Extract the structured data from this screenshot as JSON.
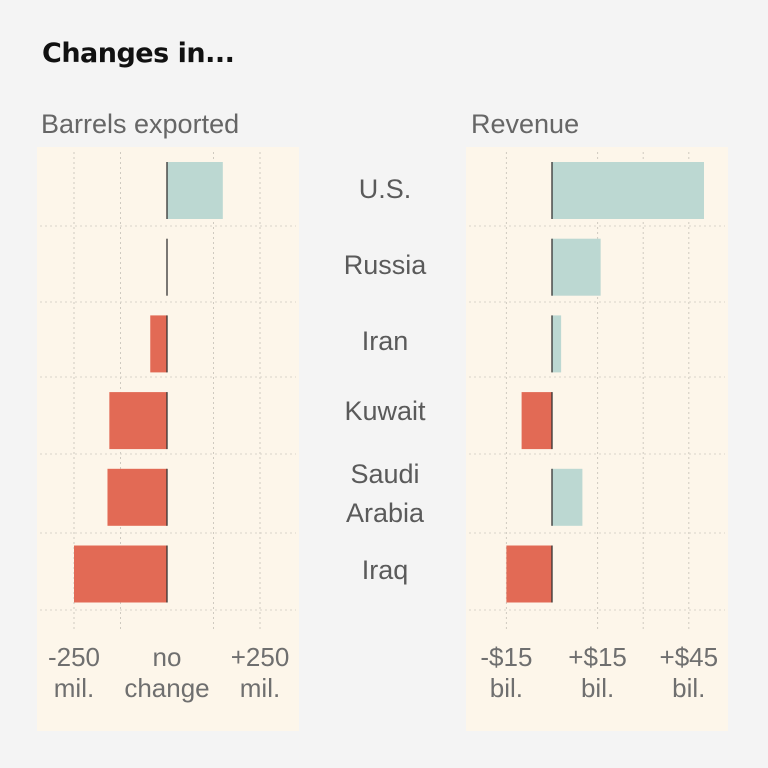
{
  "title": "Changes in...",
  "colors": {
    "positive": "#bcd8d2",
    "negative": "#e26a55",
    "panel_bg": "#fdf6ea",
    "page_bg": "#f4f4f4"
  },
  "chart_data": [
    {
      "type": "bar",
      "orientation": "horizontal",
      "title": "Barrels exported",
      "unit": "mil.",
      "categories": [
        "U.S.",
        "Russia",
        "Iran",
        "Kuwait",
        "Saudi Arabia",
        "Iraq"
      ],
      "values": [
        150,
        0,
        -45,
        -155,
        -160,
        -250
      ],
      "xlim": [
        -250,
        330
      ],
      "ticks": [
        {
          "value": -250,
          "line1": "-250",
          "line2": "mil."
        },
        {
          "value": 0,
          "line1": "no",
          "line2": "change"
        },
        {
          "value": 250,
          "line1": "+250",
          "line2": "mil."
        }
      ],
      "grid": true
    },
    {
      "type": "bar",
      "orientation": "horizontal",
      "title": "Revenue",
      "unit": "bil.",
      "categories": [
        "U.S.",
        "Russia",
        "Iran",
        "Kuwait",
        "Saudi Arabia",
        "Iraq"
      ],
      "values": [
        50,
        16,
        3,
        -10,
        10,
        -15
      ],
      "xlim": [
        -25,
        58
      ],
      "ticks": [
        {
          "value": -15,
          "line1": "-$15",
          "line2": "bil."
        },
        {
          "value": 15,
          "line1": "+$15",
          "line2": "bil."
        },
        {
          "value": 45,
          "line1": "+$45",
          "line2": "bil."
        }
      ],
      "grid": true
    }
  ],
  "country_labels": [
    "U.S.",
    "Russia",
    "Iran",
    "Kuwait",
    "Saudi\nArabia",
    "Iraq"
  ]
}
